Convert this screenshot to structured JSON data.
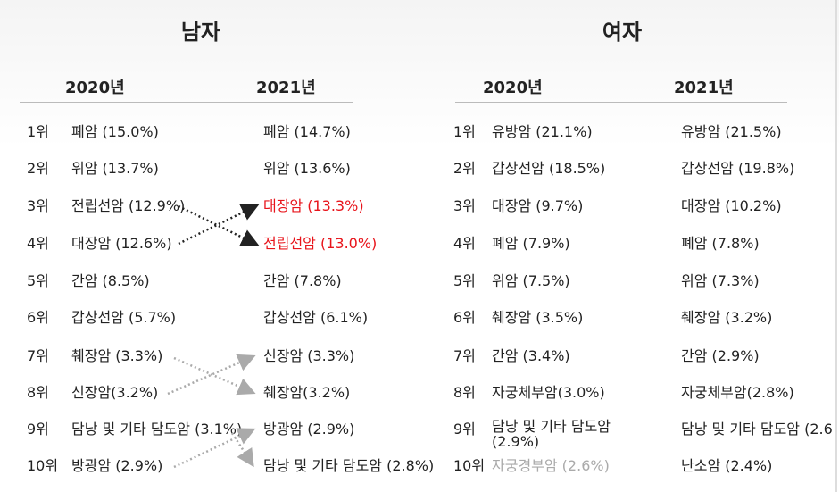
{
  "men": {
    "title": "남자",
    "year_a": "2020년",
    "year_b": "2021년",
    "rows": [
      {
        "rank": "1위",
        "a": "폐암  (15.0%)",
        "b": "폐암  (14.7%)"
      },
      {
        "rank": "2위",
        "a": "위암  (13.7%)",
        "b": "위암  (13.6%)"
      },
      {
        "rank": "3위",
        "a": "전립선암 (12.9%)",
        "b": "대장암 (13.3%)",
        "b_highlight": true
      },
      {
        "rank": "4위",
        "a": "대장암 (12.6%)",
        "b": "전립선암 (13.0%)",
        "b_highlight": true
      },
      {
        "rank": "5위",
        "a": "간암  (8.5%)",
        "b": "간암  (7.8%)"
      },
      {
        "rank": "6위",
        "a": "갑상선암  (5.7%)",
        "b": "갑상선암  (6.1%)"
      },
      {
        "rank": "7위",
        "a": "췌장암  (3.3%)",
        "b": "신장암  (3.3%)"
      },
      {
        "rank": "8위",
        "a": "신장암(3.2%)",
        "b": "췌장암(3.2%)"
      },
      {
        "rank": "9위",
        "a": "담낭 및 기타 담도암 (3.1%)",
        "b": "방광암  (2.9%)"
      },
      {
        "rank": "10위",
        "a": "방광암  (2.9%)",
        "b": "담낭 및 기타 담도암  (2.8%)"
      }
    ]
  },
  "women": {
    "title": "여자",
    "year_a": "2020년",
    "year_b": "2021년",
    "rows": [
      {
        "rank": "1위",
        "a": "유방암  (21.1%)",
        "b": "유방암  (21.5%)"
      },
      {
        "rank": "2위",
        "a": "갑상선암  (18.5%)",
        "b": "갑상선암  (19.8%)"
      },
      {
        "rank": "3위",
        "a": "대장암  (9.7%)",
        "b": "대장암 (10.2%)"
      },
      {
        "rank": "4위",
        "a": "폐암  (7.9%)",
        "b": "폐암  (7.8%)"
      },
      {
        "rank": "5위",
        "a": "위암  (7.5%)",
        "b": "위암  (7.3%)"
      },
      {
        "rank": "6위",
        "a": "췌장암  (3.5%)",
        "b": "췌장암  (3.2%)"
      },
      {
        "rank": "7위",
        "a": "간암  (3.4%)",
        "b": "간암  (2.9%)"
      },
      {
        "rank": "8위",
        "a": "자궁체부암(3.0%)",
        "b": "자궁체부암(2.8%)"
      },
      {
        "rank": "9위",
        "a": "담낭 및 기타 담도암\n(2.9%)",
        "b": "담낭 및 기타 담도암  (2.6"
      },
      {
        "rank": "10위",
        "a": "자궁경부암  (2.6%)",
        "a_faded": true,
        "b": "난소암  (2.4%)"
      }
    ]
  },
  "colors": {
    "highlight": "#e8141b",
    "arrow_dark": "#222222",
    "arrow_light": "#aaaaaa"
  }
}
